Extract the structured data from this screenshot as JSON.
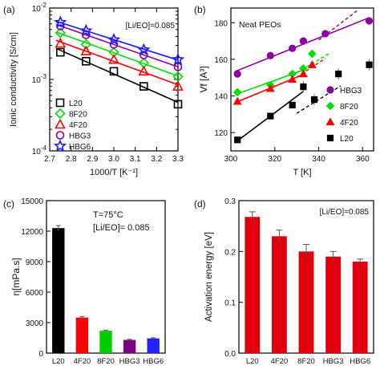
{
  "chart_data": [
    {
      "panel": "(a)",
      "type": "line",
      "xlabel": "1000/T [K⁻¹]",
      "ylabel": "Ionic conductivity [S/cm]",
      "yscale": "log",
      "xlim": [
        2.7,
        3.3
      ],
      "ylim": [
        0.0001,
        0.01
      ],
      "xticks": [
        "2.7",
        "2.8",
        "2.9",
        "3.0",
        "3.1",
        "3.2",
        "3.3"
      ],
      "yticks": [
        "10⁻⁴",
        "10⁻³",
        "10⁻²"
      ],
      "annotation": "[Li/EO]=0.085",
      "legend_position": "bottom-left",
      "x": [
        2.75,
        2.87,
        3.0,
        3.14,
        3.3
      ],
      "series": [
        {
          "name": "L20",
          "color": "#000000",
          "marker": "square",
          "values": [
            0.0024,
            0.0018,
            0.0013,
            0.0008,
            0.00045
          ]
        },
        {
          "name": "8F20",
          "color": "#00dd00",
          "marker": "diamond",
          "values": [
            0.0045,
            0.0031,
            0.0024,
            0.0017,
            0.0011
          ]
        },
        {
          "name": "4F20",
          "color": "#ff0000",
          "marker": "triangle",
          "values": [
            0.0032,
            0.0025,
            0.0019,
            0.0013,
            0.0008
          ]
        },
        {
          "name": "HBG3",
          "color": "#8a00a0",
          "marker": "circle",
          "values": [
            0.0056,
            0.0042,
            0.0031,
            0.0022,
            0.0015
          ]
        },
        {
          "name": "HBG6",
          "color": "#1a1aff",
          "marker": "star",
          "values": [
            0.0063,
            0.0048,
            0.0036,
            0.0026,
            0.0019
          ]
        }
      ]
    },
    {
      "panel": "(b)",
      "type": "scatter",
      "xlabel": "T [K]",
      "ylabel": "Vf [A³]",
      "xlim": [
        300,
        365
      ],
      "ylim": [
        110,
        188
      ],
      "xticks": [
        "300",
        "320",
        "340",
        "360"
      ],
      "yticks": [
        "120",
        "140",
        "160",
        "180"
      ],
      "annotation": "Neat PEOs",
      "legend_position": "bottom-right",
      "series": [
        {
          "name": "HBG3",
          "color": "#8a00a0",
          "marker": "circle",
          "x": [
            303,
            318,
            328,
            333,
            343,
            363
          ],
          "values": [
            152,
            162,
            166,
            170,
            174,
            181
          ]
        },
        {
          "name": "8F20",
          "color": "#00dd00",
          "marker": "diamond",
          "x": [
            303,
            318,
            328,
            333,
            337
          ],
          "values": [
            142,
            146,
            152,
            155,
            163
          ]
        },
        {
          "name": "4F20",
          "color": "#ff0000",
          "marker": "triangle",
          "x": [
            303,
            318,
            328,
            333,
            337
          ],
          "values": [
            137,
            144,
            149,
            152,
            157
          ]
        },
        {
          "name": "L20",
          "color": "#000000",
          "marker": "square",
          "x": [
            303,
            318,
            328,
            333,
            338,
            349,
            363
          ],
          "values": [
            116,
            129,
            135,
            145,
            138,
            152,
            157
          ]
        }
      ]
    },
    {
      "panel": "(c)",
      "type": "bar",
      "ylabel": "η[mPa.s]",
      "ylim": [
        0,
        15000
      ],
      "yticks": [
        "0",
        "3000",
        "6000",
        "9000",
        "12000",
        "15000"
      ],
      "annotation_line1": "T=75°C",
      "annotation_line2": "[Li/EO]= 0.085",
      "categories": [
        "L20",
        "4F20",
        "8F20",
        "HBG3",
        "HBG6"
      ],
      "values": [
        12300,
        3500,
        2200,
        1300,
        1450
      ],
      "errors": [
        250,
        100,
        60,
        60,
        60
      ],
      "colors": [
        "#000000",
        "#ff0000",
        "#00cc00",
        "#7b0080",
        "#2222ff"
      ]
    },
    {
      "panel": "(d)",
      "type": "bar",
      "ylabel": "Activation energy [eV]",
      "ylim": [
        0,
        0.3
      ],
      "yticks": [
        "0.0",
        "0.1",
        "0.2",
        "0.3"
      ],
      "annotation": "[Li/EO]=0.085",
      "categories": [
        "L20",
        "4F20",
        "8F20",
        "HBG3",
        "HBG6"
      ],
      "values": [
        0.268,
        0.23,
        0.2,
        0.19,
        0.18
      ],
      "errors": [
        0.01,
        0.012,
        0.014,
        0.01,
        0.005
      ],
      "colors": [
        "#e0000d",
        "#e0000d",
        "#e0000d",
        "#e0000d",
        "#e0000d"
      ]
    }
  ]
}
